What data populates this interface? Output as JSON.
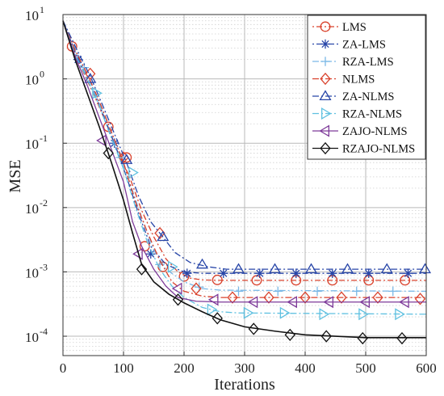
{
  "chart_data": {
    "type": "line",
    "title": "",
    "xlabel": "Iterations",
    "ylabel": "MSE",
    "x_axis": {
      "min": 0,
      "max": 600,
      "ticks": [
        0,
        100,
        200,
        300,
        400,
        500,
        600
      ],
      "tick_labels": [
        "0",
        "100",
        "200",
        "300",
        "400",
        "500",
        "600"
      ]
    },
    "y_axis": {
      "scale": "log",
      "min": 5e-05,
      "max": 10,
      "ticks": [
        0.0001,
        0.001,
        0.01,
        0.1,
        1,
        10
      ],
      "tick_labels": [
        {
          "base": "10",
          "exp": "-4"
        },
        {
          "base": "10",
          "exp": "-3"
        },
        {
          "base": "10",
          "exp": "-2"
        },
        {
          "base": "10",
          "exp": "-1"
        },
        {
          "base": "10",
          "exp": "0"
        },
        {
          "base": "10",
          "exp": "1"
        }
      ]
    },
    "grid": true,
    "minor_grid": true,
    "legend_position": "top-right",
    "series": [
      {
        "name": "LMS",
        "color": "#d9412b",
        "dash": "dotdash",
        "marker": "circle",
        "curve": [
          [
            0,
            8
          ],
          [
            15,
            3.2
          ],
          [
            30,
            1.5
          ],
          [
            50,
            0.6
          ],
          [
            70,
            0.22
          ],
          [
            90,
            0.075
          ],
          [
            110,
            0.03
          ],
          [
            130,
            0.009
          ],
          [
            150,
            0.0035
          ],
          [
            170,
            0.0016
          ],
          [
            190,
            0.001
          ],
          [
            210,
            0.0008
          ],
          [
            230,
            0.00075
          ],
          [
            260,
            0.00074
          ],
          [
            300,
            0.00074
          ],
          [
            600,
            0.00074
          ]
        ],
        "markers": [
          [
            15,
            3.2
          ],
          [
            75,
            0.18
          ],
          [
            105,
            0.06
          ],
          [
            135,
            0.0025
          ],
          [
            165,
            0.0012
          ],
          [
            200,
            0.00085
          ],
          [
            255,
            0.00075
          ],
          [
            320,
            0.00074
          ],
          [
            385,
            0.00074
          ],
          [
            445,
            0.00074
          ],
          [
            505,
            0.00074
          ],
          [
            565,
            0.00074
          ]
        ]
      },
      {
        "name": "ZA-LMS",
        "color": "#2846a8",
        "dash": "dotdash",
        "marker": "asterisk",
        "curve": [
          [
            0,
            8
          ],
          [
            25,
            2.0
          ],
          [
            45,
            0.9
          ],
          [
            65,
            0.3
          ],
          [
            85,
            0.1
          ],
          [
            105,
            0.03
          ],
          [
            125,
            0.008
          ],
          [
            145,
            0.0025
          ],
          [
            170,
            0.0013
          ],
          [
            200,
            0.001
          ],
          [
            230,
            0.00095
          ],
          [
            600,
            0.00095
          ]
        ],
        "markers": [
          [
            25,
            2.0
          ],
          [
            85,
            0.1
          ],
          [
            145,
            0.0019
          ],
          [
            205,
            0.00095
          ],
          [
            265,
            0.00095
          ],
          [
            325,
            0.00095
          ],
          [
            385,
            0.00095
          ],
          [
            445,
            0.00095
          ],
          [
            505,
            0.00095
          ],
          [
            570,
            0.00095
          ]
        ]
      },
      {
        "name": "RZA-LMS",
        "color": "#7ab8e6",
        "dash": "dashdot",
        "marker": "plus",
        "curve": [
          [
            0,
            8
          ],
          [
            30,
            1.8
          ],
          [
            50,
            0.7
          ],
          [
            70,
            0.25
          ],
          [
            90,
            0.08
          ],
          [
            110,
            0.025
          ],
          [
            130,
            0.007
          ],
          [
            150,
            0.0022
          ],
          [
            170,
            0.0011
          ],
          [
            200,
            0.0007
          ],
          [
            230,
            0.00055
          ],
          [
            260,
            0.00052
          ],
          [
            600,
            0.0005
          ]
        ],
        "markers": [
          [
            35,
            1.5
          ],
          [
            95,
            0.06
          ],
          [
            160,
            0.0013
          ],
          [
            225,
            0.00058
          ],
          [
            290,
            0.0005
          ],
          [
            355,
            0.0005
          ],
          [
            420,
            0.0005
          ],
          [
            485,
            0.0005
          ],
          [
            545,
            0.0005
          ]
        ]
      },
      {
        "name": "NLMS",
        "color": "#d9412b",
        "dash": "dashdot",
        "marker": "diamond",
        "curve": [
          [
            0,
            8
          ],
          [
            20,
            2.8
          ],
          [
            40,
            1.2
          ],
          [
            60,
            0.45
          ],
          [
            80,
            0.15
          ],
          [
            100,
            0.05
          ],
          [
            120,
            0.012
          ],
          [
            140,
            0.004
          ],
          [
            160,
            0.0015
          ],
          [
            180,
            0.0007
          ],
          [
            200,
            0.0005
          ],
          [
            230,
            0.00042
          ],
          [
            260,
            0.0004
          ],
          [
            600,
            0.0004
          ]
        ],
        "markers": [
          [
            45,
            1.2
          ],
          [
            100,
            0.06
          ],
          [
            160,
            0.004
          ],
          [
            220,
            0.00055
          ],
          [
            280,
            0.0004
          ],
          [
            340,
            0.0004
          ],
          [
            400,
            0.0004
          ],
          [
            460,
            0.0004
          ],
          [
            520,
            0.0004
          ],
          [
            590,
            0.00038
          ]
        ]
      },
      {
        "name": "ZA-NLMS",
        "color": "#2846a8",
        "dash": "dashdot",
        "marker": "triangle-up",
        "curve": [
          [
            0,
            8
          ],
          [
            25,
            2.6
          ],
          [
            45,
            1.1
          ],
          [
            65,
            0.4
          ],
          [
            85,
            0.14
          ],
          [
            105,
            0.05
          ],
          [
            125,
            0.015
          ],
          [
            145,
            0.006
          ],
          [
            165,
            0.0035
          ],
          [
            185,
            0.002
          ],
          [
            210,
            0.0014
          ],
          [
            240,
            0.0012
          ],
          [
            270,
            0.0011
          ],
          [
            600,
            0.0011
          ]
        ],
        "markers": [
          [
            45,
            1.0
          ],
          [
            105,
            0.055
          ],
          [
            165,
            0.0035
          ],
          [
            230,
            0.0013
          ],
          [
            290,
            0.0011
          ],
          [
            350,
            0.0011
          ],
          [
            410,
            0.0011
          ],
          [
            470,
            0.0011
          ],
          [
            535,
            0.0011
          ],
          [
            598,
            0.0011
          ]
        ]
      },
      {
        "name": "RZA-NLMS",
        "color": "#5fc0e0",
        "dash": "dashdot",
        "marker": "triangle-right",
        "curve": [
          [
            0,
            8
          ],
          [
            20,
            2.4
          ],
          [
            40,
            1.0
          ],
          [
            60,
            0.38
          ],
          [
            80,
            0.12
          ],
          [
            100,
            0.04
          ],
          [
            120,
            0.01
          ],
          [
            140,
            0.0028
          ],
          [
            160,
            0.0011
          ],
          [
            180,
            0.0006
          ],
          [
            200,
            0.0004
          ],
          [
            230,
            0.00028
          ],
          [
            260,
            0.00024
          ],
          [
            290,
            0.00023
          ],
          [
            600,
            0.00022
          ]
        ],
        "markers": [
          [
            55,
            0.6
          ],
          [
            115,
            0.035
          ],
          [
            180,
            0.0012
          ],
          [
            245,
            0.00026
          ],
          [
            305,
            0.00023
          ],
          [
            365,
            0.00023
          ],
          [
            430,
            0.00022
          ],
          [
            495,
            0.00022
          ],
          [
            555,
            0.00022
          ]
        ]
      },
      {
        "name": "ZAJO-NLMS",
        "color": "#7d3a99",
        "dash": "solid",
        "marker": "triangle-left",
        "curve": [
          [
            0,
            8
          ],
          [
            20,
            2.2
          ],
          [
            40,
            0.8
          ],
          [
            60,
            0.25
          ],
          [
            80,
            0.08
          ],
          [
            100,
            0.025
          ],
          [
            115,
            0.006
          ],
          [
            130,
            0.0025
          ],
          [
            150,
            0.0011
          ],
          [
            170,
            0.0006
          ],
          [
            190,
            0.0004
          ],
          [
            220,
            0.00035
          ],
          [
            260,
            0.00034
          ],
          [
            600,
            0.00034
          ]
        ],
        "markers": [
          [
            65,
            0.11
          ],
          [
            125,
            0.0019
          ],
          [
            190,
            0.00055
          ],
          [
            250,
            0.00037
          ],
          [
            315,
            0.00034
          ],
          [
            380,
            0.00034
          ],
          [
            440,
            0.00034
          ],
          [
            500,
            0.00034
          ],
          [
            565,
            0.00034
          ]
        ]
      },
      {
        "name": "RZAJO-NLMS",
        "color": "#111111",
        "dash": "solid",
        "marker": "diamond",
        "curve": [
          [
            0,
            8
          ],
          [
            20,
            2.0
          ],
          [
            40,
            0.6
          ],
          [
            60,
            0.18
          ],
          [
            80,
            0.05
          ],
          [
            100,
            0.013
          ],
          [
            115,
            0.004
          ],
          [
            130,
            0.0013
          ],
          [
            150,
            0.0007
          ],
          [
            175,
            0.00045
          ],
          [
            200,
            0.00033
          ],
          [
            230,
            0.00024
          ],
          [
            260,
            0.00018
          ],
          [
            300,
            0.00014
          ],
          [
            350,
            0.00012
          ],
          [
            400,
            0.000105
          ],
          [
            450,
            0.0001
          ],
          [
            500,
            9.5e-05
          ],
          [
            600,
            9.5e-05
          ]
        ],
        "markers": [
          [
            75,
            0.07
          ],
          [
            130,
            0.0011
          ],
          [
            190,
            0.00037
          ],
          [
            255,
            0.00019
          ],
          [
            315,
            0.00013
          ],
          [
            375,
            0.000105
          ],
          [
            435,
            0.0001
          ],
          [
            495,
            9.3e-05
          ],
          [
            560,
            9.3e-05
          ]
        ]
      }
    ]
  }
}
